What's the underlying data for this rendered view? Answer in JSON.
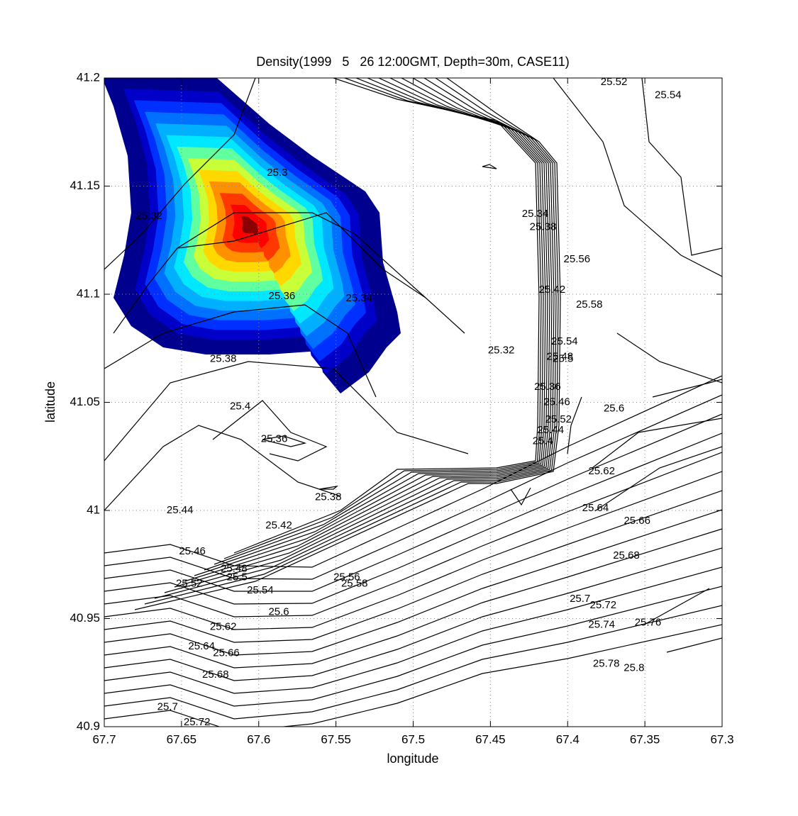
{
  "chart_data": {
    "type": "contour",
    "title": "Density(1999   5   26 12:00GMT, Depth=30m, CASE11)",
    "x_label": "longitude",
    "y_label": "latitude",
    "xlim": [
      67.7,
      67.3
    ],
    "ylim": [
      40.9,
      41.2
    ],
    "xticks": [
      67.7,
      67.65,
      67.6,
      67.55,
      67.5,
      67.45,
      67.4,
      67.35,
      67.3
    ],
    "yticks": [
      40.9,
      40.95,
      41,
      41.05,
      41.1,
      41.15,
      41.2
    ],
    "grid": true,
    "line_color": "#000000",
    "fill_colors": [
      "#00008f",
      "#0000c8",
      "#0030ff",
      "#0070ff",
      "#00b0ff",
      "#00e8ff",
      "#60ffa0",
      "#c8ff38",
      "#ffd800",
      "#ff9000",
      "#ff3800",
      "#ff0000",
      "#8b0000"
    ],
    "labels": [
      {
        "text": "25.52",
        "x": 67.37,
        "y": 41.198
      },
      {
        "text": "25.54",
        "x": 67.335,
        "y": 41.192
      },
      {
        "text": "25.3",
        "x": 67.588,
        "y": 41.156
      },
      {
        "text": "25.32",
        "x": 67.671,
        "y": 41.136
      },
      {
        "text": "25.34",
        "x": 67.421,
        "y": 41.137
      },
      {
        "text": "25.38",
        "x": 67.416,
        "y": 41.131
      },
      {
        "text": "25.56",
        "x": 67.394,
        "y": 41.116
      },
      {
        "text": "25.42",
        "x": 67.41,
        "y": 41.102
      },
      {
        "text": "25.58",
        "x": 67.386,
        "y": 41.095
      },
      {
        "text": "25.36",
        "x": 67.585,
        "y": 41.099
      },
      {
        "text": "25.34",
        "x": 67.535,
        "y": 41.098
      },
      {
        "text": "25.54",
        "x": 67.402,
        "y": 41.078
      },
      {
        "text": "25.32",
        "x": 67.443,
        "y": 41.074
      },
      {
        "text": "25.48",
        "x": 67.405,
        "y": 41.071
      },
      {
        "text": "25.5",
        "x": 67.403,
        "y": 41.07
      },
      {
        "text": "25.38",
        "x": 67.623,
        "y": 41.07
      },
      {
        "text": "25.36",
        "x": 67.413,
        "y": 41.057
      },
      {
        "text": "25.46",
        "x": 67.407,
        "y": 41.05
      },
      {
        "text": "25.4",
        "x": 67.612,
        "y": 41.048
      },
      {
        "text": "25.6",
        "x": 67.37,
        "y": 41.047
      },
      {
        "text": "25.52",
        "x": 67.406,
        "y": 41.042
      },
      {
        "text": "25.44",
        "x": 67.411,
        "y": 41.037
      },
      {
        "text": "25.36",
        "x": 67.59,
        "y": 41.033
      },
      {
        "text": "25.4",
        "x": 67.416,
        "y": 41.032
      },
      {
        "text": "25.62",
        "x": 67.378,
        "y": 41.018
      },
      {
        "text": "25.38",
        "x": 67.555,
        "y": 41.006
      },
      {
        "text": "25.44",
        "x": 67.651,
        "y": 41.0
      },
      {
        "text": "25.64",
        "x": 67.382,
        "y": 41.001
      },
      {
        "text": "25.42",
        "x": 67.587,
        "y": 40.993
      },
      {
        "text": "25.66",
        "x": 67.355,
        "y": 40.995
      },
      {
        "text": "25.46",
        "x": 67.643,
        "y": 40.981
      },
      {
        "text": "25.68",
        "x": 67.362,
        "y": 40.979
      },
      {
        "text": "25.48",
        "x": 67.616,
        "y": 40.973
      },
      {
        "text": "25.5",
        "x": 67.614,
        "y": 40.969
      },
      {
        "text": "25.56",
        "x": 67.543,
        "y": 40.969
      },
      {
        "text": "25.52",
        "x": 67.645,
        "y": 40.966
      },
      {
        "text": "25.58",
        "x": 67.538,
        "y": 40.966
      },
      {
        "text": "25.54",
        "x": 67.599,
        "y": 40.963
      },
      {
        "text": "25.7",
        "x": 67.392,
        "y": 40.959
      },
      {
        "text": "25.72",
        "x": 67.377,
        "y": 40.956
      },
      {
        "text": "25.6",
        "x": 67.587,
        "y": 40.953
      },
      {
        "text": "25.62",
        "x": 67.623,
        "y": 40.946
      },
      {
        "text": "25.74",
        "x": 67.378,
        "y": 40.947
      },
      {
        "text": "25.76",
        "x": 67.348,
        "y": 40.948
      },
      {
        "text": "25.64",
        "x": 67.637,
        "y": 40.937
      },
      {
        "text": "25.66",
        "x": 67.621,
        "y": 40.934
      },
      {
        "text": "25.78",
        "x": 67.375,
        "y": 40.929
      },
      {
        "text": "25.8",
        "x": 67.357,
        "y": 40.927
      },
      {
        "text": "25.68",
        "x": 67.628,
        "y": 40.924
      },
      {
        "text": "25.7",
        "x": 67.659,
        "y": 40.909
      },
      {
        "text": "25.72",
        "x": 67.64,
        "y": 40.902
      }
    ]
  }
}
